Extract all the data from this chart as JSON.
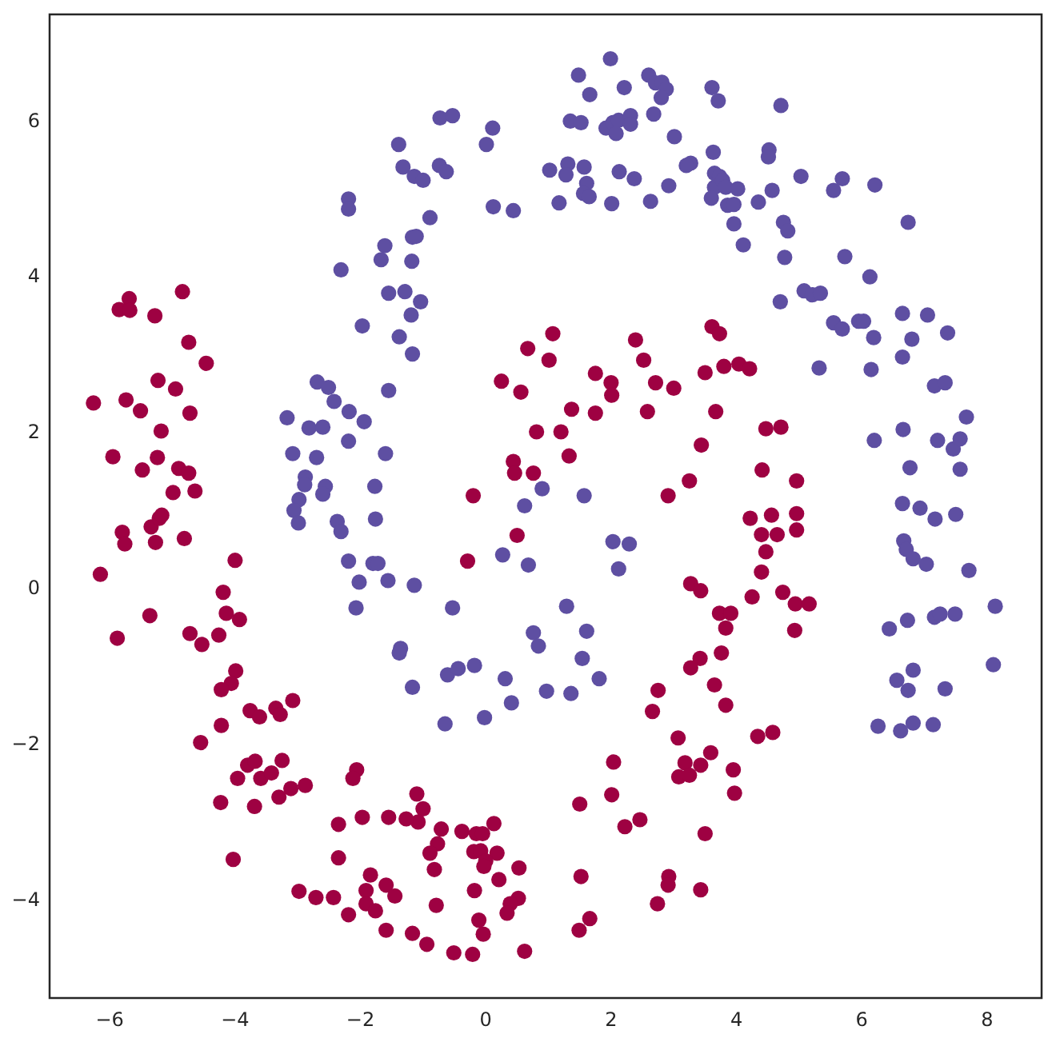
{
  "chart_data": {
    "type": "scatter",
    "marker": "circle",
    "xlim": [
      -6.96,
      8.87
    ],
    "ylim": [
      -5.25,
      7.38
    ],
    "xticks": [
      {
        "value": -6,
        "label": "−6"
      },
      {
        "value": -4,
        "label": "−4"
      },
      {
        "value": -2,
        "label": "−2"
      },
      0,
      2,
      4,
      6,
      8
    ],
    "yticks": [
      {
        "value": -4,
        "label": "−4"
      },
      {
        "value": -2,
        "label": "−2"
      },
      0,
      2,
      4,
      6
    ],
    "series": [
      {
        "color": "#5e4fa2",
        "x": [
          -2.19,
          -2.19,
          -1.61,
          -1.67,
          -2.31,
          -1.55,
          -1.97,
          -2.69,
          -2.51,
          -2.42,
          -2.18,
          -1.94,
          -3.17,
          -2.82,
          -2.6,
          -2.19,
          -3.08,
          -2.7,
          -1.6,
          -2.88,
          -2.89,
          -2.56,
          -2.6,
          -1.77,
          -2.98,
          -3.06,
          -2.99,
          -2.37,
          -1.76,
          -1.55,
          1.99,
          1.48,
          1.66,
          2.21,
          2.6,
          2.71,
          2.81,
          2.88,
          2.8,
          3.61,
          3.71,
          2.68,
          1.35,
          1.52,
          1.92,
          2.03,
          2.12,
          2.31,
          2.31,
          2.08,
          3.01,
          3.63,
          3.27,
          3.2,
          2.92,
          3.65,
          3.65,
          3.6,
          2.13,
          2.37,
          1.31,
          1.28,
          1.57,
          1.02,
          1.61,
          1.56,
          1.65,
          1.17,
          2.01,
          2.63,
          0.11,
          0.01,
          -0.73,
          -0.53,
          -1.39,
          -1.32,
          -1.14,
          -1.0,
          -0.74,
          -0.63,
          0.12,
          0.44,
          -0.89,
          -1.17,
          -1.11,
          -1.18,
          -1.29,
          -1.04,
          -1.19,
          -1.38,
          -1.17,
          0.9,
          0.62,
          1.57,
          4.71,
          4.52,
          4.51,
          3.73,
          3.78,
          3.83,
          4.02,
          3.86,
          3.96,
          3.96,
          4.11,
          4.35,
          4.57,
          5.03,
          4.75,
          4.82,
          4.77,
          4.7,
          5.55,
          5.69,
          6.21,
          6.74,
          5.73,
          6.13,
          5.08,
          5.21,
          5.34,
          5.55,
          5.69,
          5.95,
          6.03,
          6.19,
          6.65,
          7.05,
          7.37,
          6.8,
          6.65,
          5.32,
          6.15,
          7.16,
          7.33,
          7.67,
          6.66,
          7.21,
          7.46,
          7.57,
          6.2,
          6.77,
          7.57,
          6.65,
          6.93,
          7.17,
          7.5,
          6.67,
          6.71,
          6.82,
          7.03,
          7.71,
          6.44,
          6.73,
          7.16,
          7.25,
          7.49,
          8.13,
          8.1,
          6.56,
          6.82,
          6.74,
          7.33,
          6.26,
          6.62,
          6.82,
          7.14,
          -1.8,
          -1.72,
          -1.56,
          -1.14,
          -0.53,
          -1.36,
          -1.38,
          -1.17,
          -0.61,
          -0.44,
          -0.18,
          0.31,
          0.41,
          -0.02,
          -0.65,
          0.27,
          0.68,
          1.29,
          0.76,
          0.84,
          1.61,
          1.54,
          1.81,
          0.97,
          1.36,
          2.03,
          2.29,
          2.12,
          -2.31,
          -2.19,
          -2.02,
          -2.07
        ],
        "values": [
          5.01,
          4.88,
          4.41,
          4.23,
          4.1,
          3.8,
          3.38,
          2.66,
          2.59,
          2.41,
          2.28,
          2.15,
          2.2,
          2.07,
          2.08,
          1.9,
          1.74,
          1.69,
          1.74,
          1.44,
          1.34,
          1.32,
          1.22,
          1.32,
          1.15,
          1.01,
          0.85,
          0.87,
          0.9,
          2.55,
          6.81,
          6.6,
          6.35,
          6.44,
          6.6,
          6.5,
          6.51,
          6.42,
          6.31,
          6.44,
          6.27,
          6.1,
          6.01,
          5.99,
          5.92,
          5.99,
          6.02,
          6.08,
          5.97,
          5.85,
          5.81,
          5.61,
          5.47,
          5.44,
          5.18,
          5.34,
          5.16,
          5.02,
          5.36,
          5.27,
          5.46,
          5.32,
          5.42,
          5.38,
          5.21,
          5.08,
          5.04,
          4.96,
          4.95,
          4.98,
          5.92,
          5.71,
          6.05,
          6.08,
          5.71,
          5.42,
          5.3,
          5.25,
          5.44,
          5.36,
          4.91,
          4.86,
          4.77,
          4.52,
          4.53,
          4.21,
          3.82,
          3.69,
          3.52,
          3.24,
          3.02,
          1.29,
          1.07,
          1.2,
          6.21,
          5.64,
          5.55,
          5.3,
          5.25,
          5.16,
          5.14,
          4.93,
          4.94,
          4.69,
          4.42,
          4.97,
          5.12,
          5.3,
          4.71,
          4.6,
          4.26,
          3.69,
          5.12,
          5.27,
          5.19,
          4.71,
          4.27,
          4.01,
          3.83,
          3.78,
          3.8,
          3.42,
          3.34,
          3.44,
          3.44,
          3.23,
          3.54,
          3.52,
          3.29,
          3.21,
          2.98,
          2.84,
          2.82,
          2.61,
          2.65,
          2.21,
          2.05,
          1.91,
          1.8,
          1.93,
          1.91,
          1.56,
          1.54,
          1.1,
          1.04,
          0.9,
          0.96,
          0.62,
          0.51,
          0.39,
          0.32,
          0.24,
          -0.51,
          -0.4,
          -0.36,
          -0.32,
          -0.32,
          -0.22,
          -0.97,
          -1.17,
          -1.04,
          -1.3,
          -1.28,
          -1.76,
          -1.82,
          -1.72,
          -1.74,
          0.33,
          0.33,
          0.11,
          0.05,
          -0.24,
          -0.76,
          -0.82,
          -1.26,
          -1.1,
          -1.02,
          -0.98,
          -1.15,
          -1.46,
          -1.65,
          -1.73,
          0.44,
          0.31,
          -0.22,
          -0.56,
          -0.73,
          -0.54,
          -0.89,
          -1.15,
          -1.31,
          -1.34,
          0.61,
          0.58,
          0.26,
          0.74,
          0.36,
          0.09,
          -0.24
        ]
      },
      {
        "color": "#9e0142",
        "x": [
          -5.69,
          -5.85,
          -5.68,
          -5.28,
          -4.84,
          -4.74,
          -4.46,
          -5.23,
          -4.95,
          -6.26,
          -5.74,
          -5.51,
          -4.72,
          -5.18,
          -5.95,
          -5.24,
          -5.48,
          -4.9,
          -4.74,
          -4.99,
          -4.64,
          -5.8,
          -5.76,
          -6.15,
          -5.34,
          -5.27,
          -5.21,
          -5.17,
          -4.81,
          -4.0,
          -4.19,
          -4.14,
          -3.93,
          -5.36,
          -5.88,
          -4.72,
          -4.53,
          -4.26,
          -3.99,
          -4.06,
          -4.22,
          -3.76,
          -3.61,
          -3.35,
          -3.28,
          -3.08,
          -4.22,
          -4.55,
          -3.8,
          -3.68,
          -3.96,
          -3.59,
          -3.42,
          -3.25,
          -2.88,
          -3.11,
          -3.3,
          -4.23,
          -3.69,
          -2.06,
          -2.12,
          -2.35,
          -1.97,
          -1.55,
          -4.03,
          -2.35,
          -1.84,
          -2.98,
          -2.71,
          -2.43,
          -2.19,
          -1.91,
          -1.91,
          -1.76,
          -1.59,
          -1.59,
          1.07,
          0.67,
          1.01,
          0.25,
          0.56,
          1.75,
          2.0,
          2.01,
          1.37,
          1.75,
          0.81,
          1.2,
          1.33,
          0.44,
          0.46,
          0.76,
          -0.2,
          2.39,
          2.52,
          2.71,
          3.0,
          2.58,
          3.5,
          3.61,
          3.44,
          3.25,
          2.91,
          3.73,
          3.8,
          4.04,
          4.21,
          3.67,
          4.47,
          4.71,
          4.41,
          4.96,
          4.22,
          4.56,
          4.96,
          0.5,
          -0.29,
          3.27,
          3.43,
          3.73,
          3.42,
          3.27,
          3.65,
          2.75,
          2.66,
          3.07,
          3.18,
          3.08,
          3.25,
          3.43,
          3.59,
          2.04,
          2.01,
          1.5,
          2.22,
          2.46,
          3.5,
          1.52,
          2.92,
          2.91,
          2.74,
          3.43,
          1.66,
          1.49,
          -1.1,
          -1.0,
          -1.08,
          -1.27,
          -0.71,
          -0.77,
          -0.89,
          -0.82,
          -0.38,
          -0.15,
          -0.05,
          0.13,
          -0.19,
          -0.08,
          0.18,
          0.0,
          -0.03,
          0.53,
          0.21,
          -1.45,
          -0.18,
          -0.79,
          0.52,
          0.39,
          0.34,
          -0.11,
          -0.04,
          -1.17,
          -0.94,
          -0.51,
          -0.21,
          0.62,
          4.96,
          4.4,
          4.65,
          4.47,
          4.4,
          4.25,
          4.74,
          4.94,
          5.16,
          3.91,
          3.83,
          4.93,
          3.76,
          3.83,
          4.34,
          4.58,
          3.95,
          3.97
        ],
        "values": [
          3.73,
          3.59,
          3.58,
          3.51,
          3.82,
          3.17,
          2.9,
          2.68,
          2.57,
          2.39,
          2.43,
          2.29,
          2.26,
          2.03,
          1.7,
          1.69,
          1.53,
          1.55,
          1.49,
          1.24,
          1.26,
          0.73,
          0.58,
          0.19,
          0.8,
          0.6,
          0.91,
          0.95,
          0.65,
          0.37,
          -0.04,
          -0.31,
          -0.39,
          -0.34,
          -0.63,
          -0.57,
          -0.71,
          -0.59,
          -1.05,
          -1.21,
          -1.29,
          -1.56,
          -1.64,
          -1.53,
          -1.61,
          -1.43,
          -1.75,
          -1.97,
          -2.26,
          -2.21,
          -2.43,
          -2.43,
          -2.36,
          -2.2,
          -2.52,
          -2.56,
          -2.67,
          -2.74,
          -2.79,
          -2.32,
          -2.43,
          -3.02,
          -2.93,
          -2.93,
          -3.47,
          -3.45,
          -3.67,
          -3.88,
          -3.96,
          -3.96,
          -4.18,
          -3.87,
          -4.04,
          -4.13,
          -3.8,
          -4.38,
          3.28,
          3.09,
          2.94,
          2.67,
          2.53,
          2.77,
          2.65,
          2.49,
          2.31,
          2.26,
          2.02,
          2.02,
          1.71,
          1.64,
          1.49,
          1.49,
          1.2,
          3.2,
          2.94,
          2.65,
          2.58,
          2.28,
          2.78,
          3.37,
          1.85,
          1.39,
          1.2,
          3.28,
          2.86,
          2.89,
          2.83,
          2.28,
          2.06,
          2.08,
          1.53,
          1.39,
          0.91,
          0.95,
          0.97,
          0.69,
          0.36,
          0.07,
          -0.02,
          -0.31,
          -0.89,
          -1.01,
          -1.23,
          -1.3,
          -1.57,
          -1.91,
          -2.23,
          -2.41,
          -2.39,
          -2.26,
          -2.1,
          -2.22,
          -2.64,
          -2.76,
          -3.05,
          -2.96,
          -3.14,
          -3.69,
          -3.69,
          -3.8,
          -4.04,
          -3.86,
          -4.23,
          -4.38,
          -2.63,
          -2.82,
          -2.99,
          -2.95,
          -3.08,
          -3.27,
          -3.39,
          -3.6,
          -3.11,
          -3.14,
          -3.14,
          -3.01,
          -3.37,
          -3.36,
          -3.39,
          -3.49,
          -3.56,
          -3.58,
          -3.73,
          -3.94,
          -3.87,
          -4.06,
          -3.97,
          -4.04,
          -4.16,
          -4.25,
          -4.43,
          -4.42,
          -4.56,
          -4.67,
          -4.69,
          -4.65,
          0.76,
          0.7,
          0.7,
          0.48,
          0.22,
          -0.1,
          -0.04,
          -0.19,
          -0.19,
          -0.31,
          -0.5,
          -0.53,
          -0.82,
          -1.49,
          -1.89,
          -1.84,
          -2.32,
          -2.62
        ]
      }
    ]
  }
}
